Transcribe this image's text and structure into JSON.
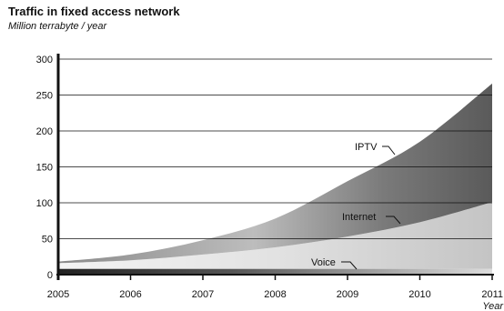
{
  "chart_data": {
    "type": "area",
    "title": "Traffic in fixed access network",
    "subtitle": "Million terrabyte / year",
    "xlabel": "Year",
    "ylabel": "",
    "x": [
      "2005",
      "2006",
      "2007",
      "2008",
      "2009",
      "2010",
      "2011"
    ],
    "ylim": [
      0,
      300
    ],
    "yticks": [
      0,
      50,
      100,
      150,
      200,
      250,
      300
    ],
    "stacked": true,
    "grid": true,
    "legend": "inline-labels",
    "series": [
      {
        "name": "Voice",
        "values": [
          8,
          8,
          8,
          8,
          8,
          8,
          8
        ],
        "color": "#2a2a2a"
      },
      {
        "name": "Internet",
        "values": [
          8,
          12,
          20,
          30,
          45,
          65,
          93
        ],
        "color": "#d8d8d8"
      },
      {
        "name": "IPTV",
        "values": [
          2,
          8,
          20,
          40,
          77,
          112,
          165
        ],
        "color": "#6e6e6e"
      }
    ]
  }
}
